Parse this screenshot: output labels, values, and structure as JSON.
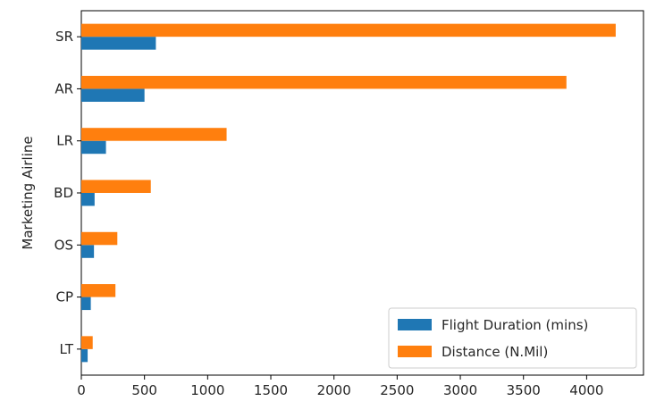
{
  "chart_data": {
    "type": "bar",
    "orientation": "horizontal",
    "title": "",
    "xlabel": "",
    "ylabel": "Marketing Airline",
    "categories": [
      "LT",
      "CP",
      "OS",
      "BD",
      "LR",
      "AR",
      "SR"
    ],
    "series": [
      {
        "name": "Flight Duration (mins)",
        "color": "#1f77b4",
        "values": [
          50,
          75,
          100,
          105,
          195,
          500,
          590
        ]
      },
      {
        "name": "Distance (N.Mil)",
        "color": "#ff7f0e",
        "values": [
          90,
          270,
          285,
          550,
          1150,
          3840,
          4230
        ]
      }
    ],
    "xlim": [
      0,
      4450
    ],
    "xticks": [
      0,
      500,
      1000,
      1500,
      2000,
      2500,
      3000,
      3500,
      4000
    ],
    "grid": false,
    "legend_position": "lower-right"
  }
}
